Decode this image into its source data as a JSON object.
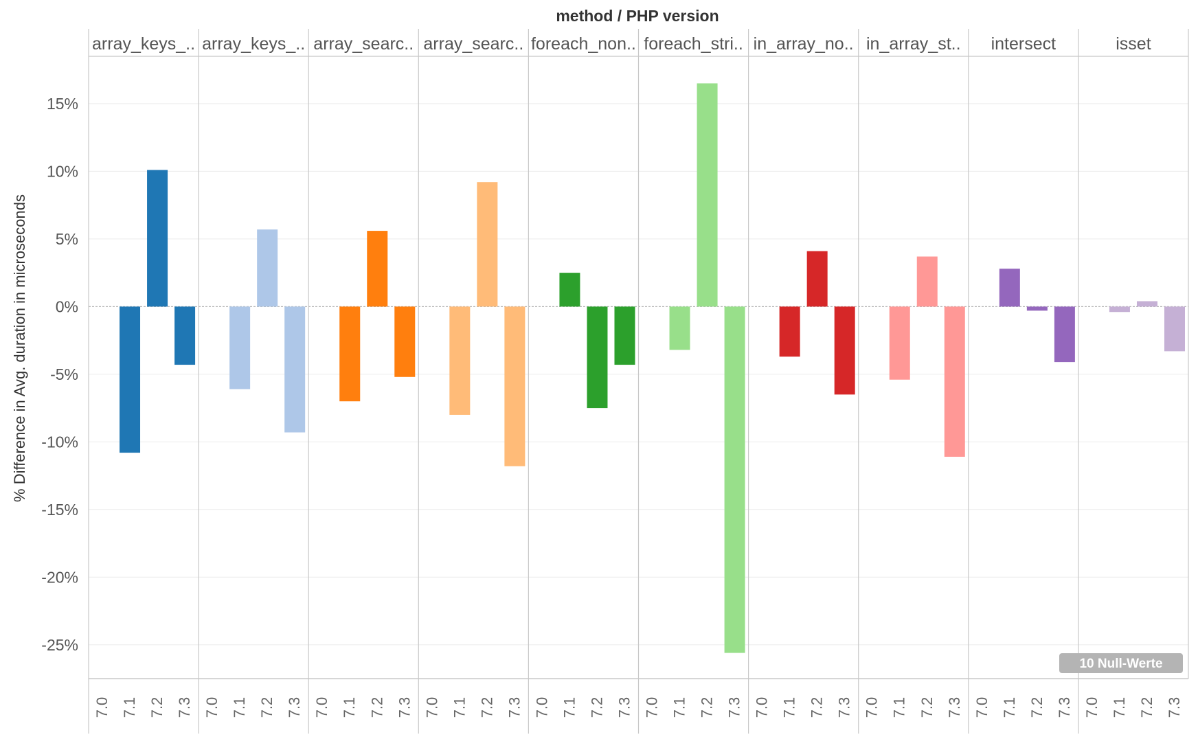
{
  "chart_data": {
    "type": "bar",
    "title": "method  /  PHP version",
    "ylabel": "% Difference in Avg. duration in microseconds",
    "ylim": [
      -27.5,
      18.5
    ],
    "yticks": [
      15,
      10,
      5,
      0,
      -5,
      -10,
      -15,
      -20,
      -25
    ],
    "ytick_labels": [
      "15%",
      "10%",
      "5%",
      "0%",
      "-5%",
      "-10%",
      "-15%",
      "-20%",
      "-25%"
    ],
    "versions": [
      "7.0",
      "7.1",
      "7.2",
      "7.3"
    ],
    "grid": true,
    "zero_line": true,
    "null_badge": "10 Null-Werte",
    "facets": [
      {
        "label": "array_keys_..",
        "color": "#1f77b4",
        "values": [
          null,
          -10.8,
          10.1,
          -4.3
        ]
      },
      {
        "label": "array_keys_..",
        "color": "#aec7e8",
        "values": [
          null,
          -6.1,
          5.7,
          -9.3
        ]
      },
      {
        "label": "array_searc..",
        "color": "#ff7f0e",
        "values": [
          null,
          -7.0,
          5.6,
          -5.2
        ]
      },
      {
        "label": "array_searc..",
        "color": "#ffbb78",
        "values": [
          null,
          -8.0,
          9.2,
          -11.8
        ]
      },
      {
        "label": "foreach_non..",
        "color": "#2ca02c",
        "values": [
          null,
          2.5,
          -7.5,
          -4.3
        ]
      },
      {
        "label": "foreach_stri..",
        "color": "#98df8a",
        "values": [
          null,
          -3.2,
          16.5,
          -25.6
        ]
      },
      {
        "label": "in_array_no..",
        "color": "#d62728",
        "values": [
          null,
          -3.7,
          4.1,
          -6.5
        ]
      },
      {
        "label": "in_array_st..",
        "color": "#ff9896",
        "values": [
          null,
          -5.4,
          3.7,
          -11.1
        ]
      },
      {
        "label": "intersect",
        "color": "#9467bd",
        "values": [
          null,
          2.8,
          -0.3,
          -4.1
        ]
      },
      {
        "label": "isset",
        "color": "#c5b0d5",
        "values": [
          null,
          -0.4,
          0.4,
          -3.3
        ]
      }
    ]
  }
}
